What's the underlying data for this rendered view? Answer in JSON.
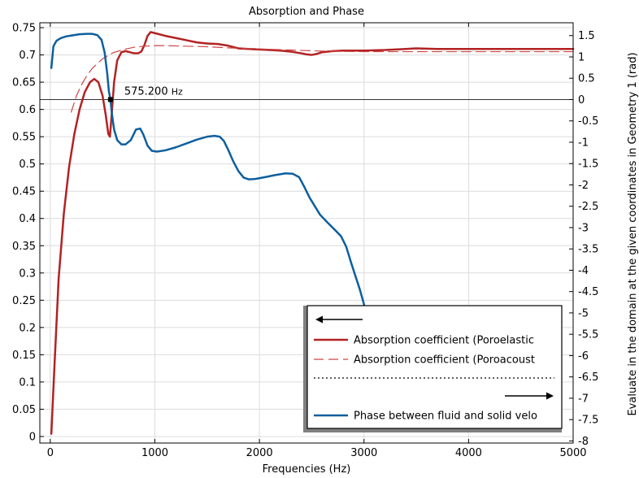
{
  "chart_data": {
    "type": "line",
    "title": "Absorption and Phase",
    "xlabel": "Frequencies (Hz)",
    "ylabel_left": "",
    "ylabel_right": "Evaluate in the domain at the given coordinates in Geometry 1 (rad)",
    "xlim": [
      -100,
      5000
    ],
    "ylim_left": [
      -0.012,
      0.759
    ],
    "ylim_right": [
      -8.05,
      1.8
    ],
    "x_ticks": [
      "0",
      "1000",
      "2000",
      "3000",
      "4000",
      "5000"
    ],
    "y_left_ticks": [
      "0",
      "0.05",
      "0.1",
      "0.15",
      "0.2",
      "0.25",
      "0.3",
      "0.35",
      "0.4",
      "0.45",
      "0.5",
      "0.55",
      "0.6",
      "0.65",
      "0.7",
      "0.75"
    ],
    "y_right_ticks": [
      "-8",
      "-7.5",
      "-7",
      "-6.5",
      "-6",
      "-5.5",
      "-5",
      "-4.5",
      "-4",
      "-3.5",
      "-3",
      "-2.5",
      "-2",
      "-1.5",
      "-1",
      "-0.5",
      "0",
      "0.5",
      "1",
      "1.5"
    ],
    "grid": true,
    "legend_position": "bottom-right",
    "colors": {
      "red": "#b22222",
      "blue": "#0d5f9e"
    },
    "annotation": {
      "x": 575.2,
      "value": "575.200",
      "unit": "Hz"
    },
    "series": [
      {
        "name": "Absorption coefficient (Poroelastic",
        "axis": "left",
        "style": "solid",
        "color": "#b22222",
        "points": [
          [
            10,
            0.005
          ],
          [
            40,
            0.13
          ],
          [
            80,
            0.29
          ],
          [
            130,
            0.41
          ],
          [
            180,
            0.495
          ],
          [
            230,
            0.555
          ],
          [
            280,
            0.6
          ],
          [
            330,
            0.632
          ],
          [
            380,
            0.65
          ],
          [
            420,
            0.656
          ],
          [
            460,
            0.65
          ],
          [
            500,
            0.625
          ],
          [
            530,
            0.59
          ],
          [
            555,
            0.555
          ],
          [
            570,
            0.55
          ],
          [
            585,
            0.585
          ],
          [
            610,
            0.65
          ],
          [
            640,
            0.69
          ],
          [
            680,
            0.705
          ],
          [
            720,
            0.707
          ],
          [
            760,
            0.705
          ],
          [
            800,
            0.703
          ],
          [
            840,
            0.703
          ],
          [
            870,
            0.706
          ],
          [
            900,
            0.718
          ],
          [
            930,
            0.735
          ],
          [
            960,
            0.742
          ],
          [
            1000,
            0.74
          ],
          [
            1100,
            0.735
          ],
          [
            1200,
            0.731
          ],
          [
            1300,
            0.727
          ],
          [
            1400,
            0.723
          ],
          [
            1500,
            0.721
          ],
          [
            1600,
            0.72
          ],
          [
            1700,
            0.717
          ],
          [
            1800,
            0.712
          ],
          [
            1900,
            0.711
          ],
          [
            2000,
            0.71
          ],
          [
            2100,
            0.709
          ],
          [
            2200,
            0.708
          ],
          [
            2300,
            0.706
          ],
          [
            2400,
            0.703
          ],
          [
            2450,
            0.701
          ],
          [
            2500,
            0.7
          ],
          [
            2550,
            0.702
          ],
          [
            2600,
            0.705
          ],
          [
            2700,
            0.707
          ],
          [
            2800,
            0.708
          ],
          [
            3000,
            0.708
          ],
          [
            3200,
            0.709
          ],
          [
            3400,
            0.711
          ],
          [
            3500,
            0.712
          ],
          [
            3700,
            0.711
          ],
          [
            4000,
            0.711
          ],
          [
            4500,
            0.711
          ],
          [
            5000,
            0.711
          ]
        ]
      },
      {
        "name": "Absorption coefficient (Poroacoust",
        "axis": "left",
        "style": "dashed",
        "color": "#d04545",
        "points": [
          [
            200,
            0.595
          ],
          [
            250,
            0.625
          ],
          [
            300,
            0.646
          ],
          [
            350,
            0.662
          ],
          [
            400,
            0.675
          ],
          [
            500,
            0.693
          ],
          [
            600,
            0.704
          ],
          [
            700,
            0.71
          ],
          [
            800,
            0.714
          ],
          [
            900,
            0.716
          ],
          [
            1000,
            0.717
          ],
          [
            1100,
            0.717
          ],
          [
            1300,
            0.716
          ],
          [
            1500,
            0.715
          ],
          [
            1700,
            0.713
          ],
          [
            2000,
            0.711
          ],
          [
            2300,
            0.709
          ],
          [
            2600,
            0.707
          ],
          [
            3000,
            0.706
          ],
          [
            3500,
            0.706
          ],
          [
            4000,
            0.706
          ],
          [
            4500,
            0.706
          ],
          [
            5000,
            0.706
          ]
        ]
      },
      {
        "name": "",
        "axis": "left",
        "style": "dotted",
        "color": "#000000",
        "points": []
      },
      {
        "name": "Phase between fluid and solid velo",
        "axis": "right",
        "style": "solid",
        "color": "#0d5f9e",
        "points": [
          [
            10,
            0.74
          ],
          [
            30,
            1.25
          ],
          [
            60,
            1.38
          ],
          [
            100,
            1.44
          ],
          [
            150,
            1.48
          ],
          [
            200,
            1.5
          ],
          [
            280,
            1.53
          ],
          [
            350,
            1.54
          ],
          [
            400,
            1.54
          ],
          [
            450,
            1.51
          ],
          [
            490,
            1.4
          ],
          [
            520,
            1.1
          ],
          [
            545,
            0.6
          ],
          [
            560,
            0.2
          ],
          [
            575,
            0
          ],
          [
            590,
            -0.35
          ],
          [
            610,
            -0.7
          ],
          [
            640,
            -0.95
          ],
          [
            680,
            -1.05
          ],
          [
            720,
            -1.05
          ],
          [
            770,
            -0.95
          ],
          [
            820,
            -0.7
          ],
          [
            860,
            -0.68
          ],
          [
            890,
            -0.82
          ],
          [
            930,
            -1.08
          ],
          [
            970,
            -1.2
          ],
          [
            1020,
            -1.22
          ],
          [
            1100,
            -1.19
          ],
          [
            1200,
            -1.12
          ],
          [
            1300,
            -1.03
          ],
          [
            1400,
            -0.94
          ],
          [
            1500,
            -0.87
          ],
          [
            1570,
            -0.85
          ],
          [
            1620,
            -0.87
          ],
          [
            1660,
            -0.97
          ],
          [
            1700,
            -1.17
          ],
          [
            1750,
            -1.45
          ],
          [
            1800,
            -1.68
          ],
          [
            1850,
            -1.83
          ],
          [
            1900,
            -1.87
          ],
          [
            1960,
            -1.86
          ],
          [
            2050,
            -1.82
          ],
          [
            2150,
            -1.77
          ],
          [
            2250,
            -1.73
          ],
          [
            2320,
            -1.74
          ],
          [
            2380,
            -1.82
          ],
          [
            2430,
            -2.05
          ],
          [
            2480,
            -2.3
          ],
          [
            2530,
            -2.5
          ],
          [
            2580,
            -2.7
          ],
          [
            2650,
            -2.88
          ],
          [
            2720,
            -3.05
          ],
          [
            2780,
            -3.2
          ],
          [
            2830,
            -3.45
          ],
          [
            2880,
            -3.85
          ],
          [
            2920,
            -4.15
          ],
          [
            2960,
            -4.45
          ],
          [
            3000,
            -4.8
          ],
          [
            3010,
            -4.9
          ]
        ]
      }
    ]
  }
}
